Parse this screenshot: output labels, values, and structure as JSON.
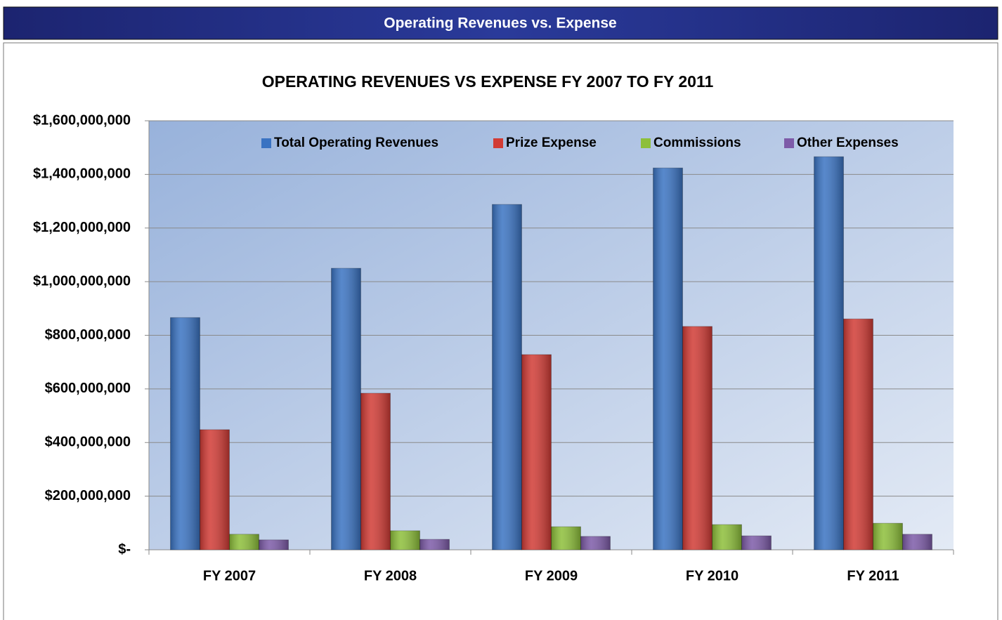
{
  "header": {
    "title": "Operating Revenues vs. Expense"
  },
  "chart_data": {
    "type": "bar",
    "title": "OPERATING REVENUES VS EXPENSE FY 2007 TO FY 2011",
    "categories": [
      "FY 2007",
      "FY 2008",
      "FY 2009",
      "FY 2010",
      "FY 2011"
    ],
    "series": [
      {
        "name": "Total Operating Revenues",
        "color": "#3a73c2",
        "values": [
          866000000,
          1050000000,
          1288000000,
          1424000000,
          1466000000
        ]
      },
      {
        "name": "Prize Expense",
        "color": "#d13b35",
        "values": [
          448000000,
          584000000,
          728000000,
          833000000,
          861000000
        ]
      },
      {
        "name": "Commissions",
        "color": "#8dbf3a",
        "values": [
          58000000,
          71000000,
          86000000,
          94000000,
          99000000
        ]
      },
      {
        "name": "Other Expenses",
        "color": "#7d5ba8",
        "values": [
          37000000,
          39000000,
          50000000,
          52000000,
          58000000
        ]
      }
    ],
    "ylim": [
      0,
      1600000000
    ],
    "yticks": [
      {
        "value": 0,
        "label": "$-"
      },
      {
        "value": 200000000,
        "label": "$200,000,000"
      },
      {
        "value": 400000000,
        "label": "$400,000,000"
      },
      {
        "value": 600000000,
        "label": "$600,000,000"
      },
      {
        "value": 800000000,
        "label": "$800,000,000"
      },
      {
        "value": 1000000000,
        "label": "$1,000,000,000"
      },
      {
        "value": 1200000000,
        "label": "$1,200,000,000"
      },
      {
        "value": 1400000000,
        "label": "$1,400,000,000"
      },
      {
        "value": 1600000000,
        "label": "$1,600,000,000"
      }
    ],
    "grid": true,
    "legend": "top"
  }
}
